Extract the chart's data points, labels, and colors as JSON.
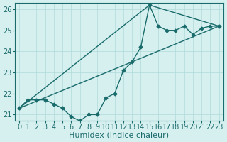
{
  "xlabel": "Humidex (Indice chaleur)",
  "ylabel": "",
  "background_color": "#d6f0f0",
  "line_color": "#1a6b6b",
  "xlim": [
    -0.5,
    23.5
  ],
  "ylim": [
    20.7,
    26.3
  ],
  "yticks": [
    21,
    22,
    23,
    24,
    25,
    26
  ],
  "xticks": [
    0,
    1,
    2,
    3,
    4,
    5,
    6,
    7,
    8,
    9,
    10,
    11,
    12,
    13,
    14,
    15,
    16,
    17,
    18,
    19,
    20,
    21,
    22,
    23
  ],
  "curve1_x": [
    0,
    1,
    2,
    3,
    4,
    5,
    6,
    7,
    8,
    9,
    10,
    11,
    12,
    13,
    14,
    15,
    16,
    17,
    18,
    19,
    20,
    21,
    22,
    23
  ],
  "curve1_y": [
    21.3,
    21.7,
    21.7,
    21.7,
    21.5,
    21.3,
    20.9,
    20.7,
    21.0,
    21.0,
    21.8,
    22.0,
    23.1,
    23.5,
    24.2,
    26.2,
    25.2,
    25.0,
    25.0,
    25.2,
    24.8,
    25.1,
    25.2,
    25.2
  ],
  "curve2_x": [
    0,
    15,
    23
  ],
  "curve2_y": [
    21.3,
    26.2,
    25.2
  ],
  "curve3_x": [
    0,
    23
  ],
  "curve3_y": [
    21.3,
    25.2
  ],
  "grid_color": "#b0dada",
  "tick_fontsize": 7,
  "label_fontsize": 8
}
